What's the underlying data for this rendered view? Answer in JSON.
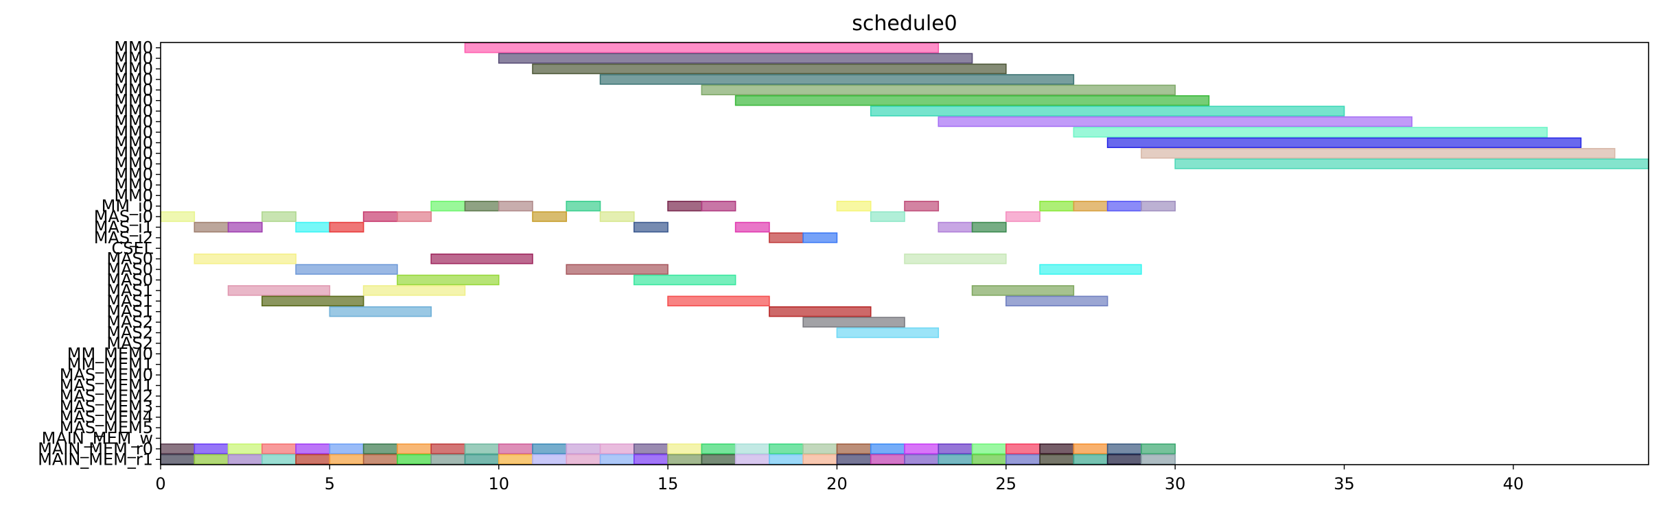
{
  "chart_data": {
    "type": "gantt",
    "title": "schedule0",
    "xlabel": "",
    "ylabel": "",
    "xlim": [
      0,
      44
    ],
    "x_ticks": [
      0,
      5,
      10,
      15,
      20,
      25,
      30,
      35,
      40
    ],
    "grid": false,
    "legend": "none",
    "row_labels": [
      "MM0",
      "MM0",
      "MM0",
      "MM0",
      "MM0",
      "MM0",
      "MM0",
      "MM0",
      "MM0",
      "MM0",
      "MM0",
      "MM0",
      "MM0",
      "MM0",
      "MM0",
      "MM_i0",
      "MAS_i0",
      "MAS_i1",
      "MAS_i2",
      "CSEL",
      "MAS0",
      "MAS0",
      "MAS0",
      "MAS1",
      "MAS1",
      "MAS1",
      "MAS2",
      "MAS2",
      "MAS2",
      "MM_MEM0",
      "MM_MEM1",
      "MAS_MEM0",
      "MAS_MEM1",
      "MAS_MEM2",
      "MAS_MEM3",
      "MAS_MEM4",
      "MAS_MEM5",
      "MAIN_MEM_w",
      "MAIN_MEM_r0",
      "MAIN_MEM_r1"
    ],
    "bars": [
      {
        "row": 0,
        "start": 9,
        "end": 23,
        "color": "#ff5fb0"
      },
      {
        "row": 1,
        "start": 10,
        "end": 24,
        "color": "#5a4f78"
      },
      {
        "row": 2,
        "start": 11,
        "end": 25,
        "color": "#505a3a"
      },
      {
        "row": 3,
        "start": 13,
        "end": 27,
        "color": "#3d7575"
      },
      {
        "row": 4,
        "start": 16,
        "end": 30,
        "color": "#80aa6a"
      },
      {
        "row": 5,
        "start": 17,
        "end": 31,
        "color": "#3cb93c"
      },
      {
        "row": 6,
        "start": 21,
        "end": 35,
        "color": "#3cd8b8"
      },
      {
        "row": 7,
        "start": 23,
        "end": 37,
        "color": "#a670f5"
      },
      {
        "row": 8,
        "start": 27,
        "end": 41,
        "color": "#6ff5c8"
      },
      {
        "row": 9,
        "start": 28,
        "end": 42,
        "color": "#2a2ae6"
      },
      {
        "row": 10,
        "start": 29,
        "end": 43,
        "color": "#d8b8a8"
      },
      {
        "row": 11,
        "start": 30,
        "end": 44,
        "color": "#50d8b8"
      },
      {
        "row": 15,
        "start": 8,
        "end": 9,
        "color": "#6ff56f"
      },
      {
        "row": 15,
        "start": 9,
        "end": 10,
        "color": "#5f7a4f"
      },
      {
        "row": 15,
        "start": 10,
        "end": 11,
        "color": "#b08a8a"
      },
      {
        "row": 15,
        "start": 12,
        "end": 13,
        "color": "#3ccf8f"
      },
      {
        "row": 15,
        "start": 15,
        "end": 16,
        "color": "#7a2a50"
      },
      {
        "row": 15,
        "start": 16,
        "end": 17,
        "color": "#b03c80"
      },
      {
        "row": 15,
        "start": 20,
        "end": 21,
        "color": "#f5f57a"
      },
      {
        "row": 15,
        "start": 22,
        "end": 23,
        "color": "#c04f7a"
      },
      {
        "row": 15,
        "start": 26,
        "end": 27,
        "color": "#8ae83c"
      },
      {
        "row": 15,
        "start": 27,
        "end": 28,
        "color": "#d8a040"
      },
      {
        "row": 15,
        "start": 28,
        "end": 29,
        "color": "#5a5af5"
      },
      {
        "row": 15,
        "start": 29,
        "end": 30,
        "color": "#a090c0"
      },
      {
        "row": 16,
        "start": 0,
        "end": 1,
        "color": "#e8f590"
      },
      {
        "row": 16,
        "start": 3,
        "end": 4,
        "color": "#b0d890"
      },
      {
        "row": 16,
        "start": 6,
        "end": 7,
        "color": "#c83c6f"
      },
      {
        "row": 16,
        "start": 7,
        "end": 8,
        "color": "#e07a8a"
      },
      {
        "row": 16,
        "start": 11,
        "end": 12,
        "color": "#c8a030"
      },
      {
        "row": 16,
        "start": 13,
        "end": 14,
        "color": "#d8e890"
      },
      {
        "row": 16,
        "start": 21,
        "end": 22,
        "color": "#90e8c8"
      },
      {
        "row": 16,
        "start": 25,
        "end": 26,
        "color": "#f590c0"
      },
      {
        "row": 17,
        "start": 1,
        "end": 2,
        "color": "#a08070"
      },
      {
        "row": 17,
        "start": 2,
        "end": 3,
        "color": "#a040b0"
      },
      {
        "row": 17,
        "start": 4,
        "end": 5,
        "color": "#3cf5f5"
      },
      {
        "row": 17,
        "start": 5,
        "end": 6,
        "color": "#e83c3c"
      },
      {
        "row": 17,
        "start": 14,
        "end": 15,
        "color": "#3c5a90"
      },
      {
        "row": 17,
        "start": 17,
        "end": 18,
        "color": "#e03cb0"
      },
      {
        "row": 17,
        "start": 23,
        "end": 24,
        "color": "#b080d8"
      },
      {
        "row": 17,
        "start": 24,
        "end": 25,
        "color": "#3c8a50"
      },
      {
        "row": 18,
        "start": 18,
        "end": 19,
        "color": "#c03c3c"
      },
      {
        "row": 18,
        "start": 19,
        "end": 20,
        "color": "#3c7af5"
      },
      {
        "row": 20,
        "start": 1,
        "end": 4,
        "color": "#f5f08a"
      },
      {
        "row": 20,
        "start": 8,
        "end": 11,
        "color": "#a02a60"
      },
      {
        "row": 20,
        "start": 22,
        "end": 25,
        "color": "#c8e8b8"
      },
      {
        "row": 21,
        "start": 4,
        "end": 7,
        "color": "#6f9ad8"
      },
      {
        "row": 21,
        "start": 12,
        "end": 15,
        "color": "#a85a60"
      },
      {
        "row": 21,
        "start": 26,
        "end": 29,
        "color": "#3cf5f0"
      },
      {
        "row": 22,
        "start": 7,
        "end": 10,
        "color": "#98d83c"
      },
      {
        "row": 22,
        "start": 14,
        "end": 17,
        "color": "#3ce8a0"
      },
      {
        "row": 23,
        "start": 2,
        "end": 5,
        "color": "#e098b0"
      },
      {
        "row": 23,
        "start": 6,
        "end": 9,
        "color": "#f0f08a"
      },
      {
        "row": 23,
        "start": 24,
        "end": 27,
        "color": "#80a860"
      },
      {
        "row": 24,
        "start": 3,
        "end": 6,
        "color": "#5a6a1a"
      },
      {
        "row": 24,
        "start": 15,
        "end": 18,
        "color": "#f54f4f"
      },
      {
        "row": 24,
        "start": 25,
        "end": 28,
        "color": "#7080c0"
      },
      {
        "row": 25,
        "start": 5,
        "end": 8,
        "color": "#6fb0d8"
      },
      {
        "row": 25,
        "start": 18,
        "end": 21,
        "color": "#b82a2a"
      },
      {
        "row": 26,
        "start": 19,
        "end": 22,
        "color": "#7a7a80"
      },
      {
        "row": 27,
        "start": 20,
        "end": 23,
        "color": "#70d8f5"
      },
      {
        "row": 38,
        "start": 0,
        "end": 1,
        "color": "#5a3c4f"
      },
      {
        "row": 38,
        "start": 1,
        "end": 2,
        "color": "#6a3cf5"
      },
      {
        "row": 38,
        "start": 2,
        "end": 3,
        "color": "#c8f570"
      },
      {
        "row": 38,
        "start": 3,
        "end": 4,
        "color": "#f57070"
      },
      {
        "row": 38,
        "start": 4,
        "end": 5,
        "color": "#a03cf5"
      },
      {
        "row": 38,
        "start": 5,
        "end": 6,
        "color": "#6fa0f5"
      },
      {
        "row": 38,
        "start": 6,
        "end": 7,
        "color": "#3c7a4f"
      },
      {
        "row": 38,
        "start": 7,
        "end": 8,
        "color": "#f59a3c"
      },
      {
        "row": 38,
        "start": 8,
        "end": 9,
        "color": "#c03c3c"
      },
      {
        "row": 38,
        "start": 9,
        "end": 10,
        "color": "#70b8a0"
      },
      {
        "row": 38,
        "start": 10,
        "end": 11,
        "color": "#d0609a"
      },
      {
        "row": 38,
        "start": 11,
        "end": 12,
        "color": "#3c8ab8"
      },
      {
        "row": 38,
        "start": 12,
        "end": 13,
        "color": "#c8a0d8"
      },
      {
        "row": 38,
        "start": 13,
        "end": 14,
        "color": "#e0a0d0"
      },
      {
        "row": 38,
        "start": 14,
        "end": 15,
        "color": "#6f5a90"
      },
      {
        "row": 38,
        "start": 15,
        "end": 16,
        "color": "#f0f08a"
      },
      {
        "row": 38,
        "start": 16,
        "end": 17,
        "color": "#3cd870"
      },
      {
        "row": 38,
        "start": 17,
        "end": 18,
        "color": "#a8e0d8"
      },
      {
        "row": 38,
        "start": 18,
        "end": 19,
        "color": "#3cd880"
      },
      {
        "row": 38,
        "start": 19,
        "end": 20,
        "color": "#a8c8a0"
      },
      {
        "row": 38,
        "start": 20,
        "end": 21,
        "color": "#a06040"
      },
      {
        "row": 38,
        "start": 21,
        "end": 22,
        "color": "#3c8af5"
      },
      {
        "row": 38,
        "start": 22,
        "end": 23,
        "color": "#c83cf5"
      },
      {
        "row": 38,
        "start": 23,
        "end": 24,
        "color": "#6a3cc8"
      },
      {
        "row": 38,
        "start": 24,
        "end": 25,
        "color": "#70f57a"
      },
      {
        "row": 38,
        "start": 25,
        "end": 26,
        "color": "#f53c60"
      },
      {
        "row": 38,
        "start": 26,
        "end": 27,
        "color": "#3c1a2a"
      },
      {
        "row": 38,
        "start": 27,
        "end": 28,
        "color": "#f59030"
      },
      {
        "row": 38,
        "start": 28,
        "end": 29,
        "color": "#3c5a80"
      },
      {
        "row": 38,
        "start": 29,
        "end": 30,
        "color": "#3ca870"
      },
      {
        "row": 39,
        "start": 0,
        "end": 1,
        "color": "#3c3c50"
      },
      {
        "row": 39,
        "start": 1,
        "end": 2,
        "color": "#90c83c"
      },
      {
        "row": 39,
        "start": 2,
        "end": 3,
        "color": "#a080c8"
      },
      {
        "row": 39,
        "start": 3,
        "end": 4,
        "color": "#70d0c0"
      },
      {
        "row": 39,
        "start": 4,
        "end": 5,
        "color": "#b83c2a"
      },
      {
        "row": 39,
        "start": 5,
        "end": 6,
        "color": "#f5a03c"
      },
      {
        "row": 39,
        "start": 6,
        "end": 7,
        "color": "#b0603c"
      },
      {
        "row": 39,
        "start": 7,
        "end": 8,
        "color": "#3cd83c"
      },
      {
        "row": 39,
        "start": 8,
        "end": 9,
        "color": "#7a9a90"
      },
      {
        "row": 39,
        "start": 9,
        "end": 10,
        "color": "#3c9a8a"
      },
      {
        "row": 39,
        "start": 10,
        "end": 11,
        "color": "#f5b03c"
      },
      {
        "row": 39,
        "start": 11,
        "end": 12,
        "color": "#b0b0f5"
      },
      {
        "row": 39,
        "start": 12,
        "end": 13,
        "color": "#e0a0c8"
      },
      {
        "row": 39,
        "start": 13,
        "end": 14,
        "color": "#8ab0f5"
      },
      {
        "row": 39,
        "start": 14,
        "end": 15,
        "color": "#7a3cf5"
      },
      {
        "row": 39,
        "start": 15,
        "end": 16,
        "color": "#7a9a60"
      },
      {
        "row": 39,
        "start": 16,
        "end": 17,
        "color": "#3c5a3c"
      },
      {
        "row": 39,
        "start": 17,
        "end": 18,
        "color": "#c8b0e8"
      },
      {
        "row": 39,
        "start": 18,
        "end": 19,
        "color": "#70c8f5"
      },
      {
        "row": 39,
        "start": 19,
        "end": 20,
        "color": "#f5b090"
      },
      {
        "row": 39,
        "start": 20,
        "end": 21,
        "color": "#3c3c6a"
      },
      {
        "row": 39,
        "start": 21,
        "end": 22,
        "color": "#c03cb0"
      },
      {
        "row": 39,
        "start": 22,
        "end": 23,
        "color": "#7a5ac8"
      },
      {
        "row": 39,
        "start": 23,
        "end": 24,
        "color": "#3c9aa8"
      },
      {
        "row": 39,
        "start": 24,
        "end": 25,
        "color": "#60c83c"
      },
      {
        "row": 39,
        "start": 25,
        "end": 26,
        "color": "#6a70c8"
      },
      {
        "row": 39,
        "start": 26,
        "end": 27,
        "color": "#3c3c2a"
      },
      {
        "row": 39,
        "start": 27,
        "end": 28,
        "color": "#3ca890"
      },
      {
        "row": 39,
        "start": 28,
        "end": 29,
        "color": "#1a1a3c"
      },
      {
        "row": 39,
        "start": 29,
        "end": 30,
        "color": "#8aa0a8"
      }
    ]
  }
}
